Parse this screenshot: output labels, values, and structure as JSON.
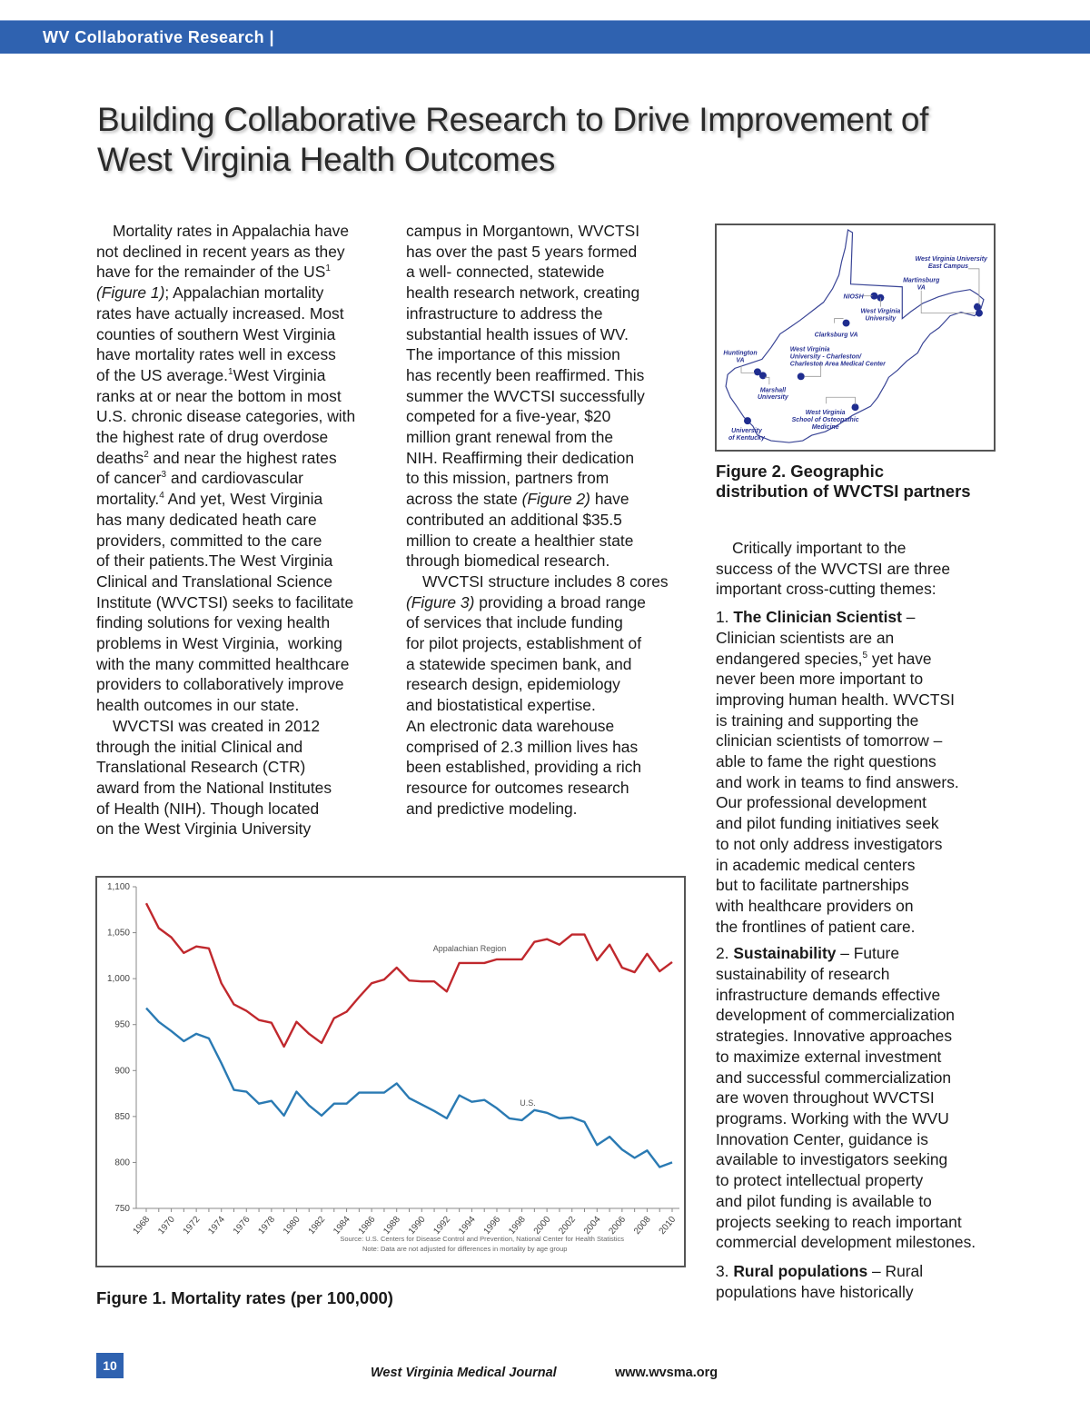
{
  "header": {
    "section": "WV Collaborative Research |"
  },
  "title": {
    "line1": "Building Collaborative Research to Drive Improvement of",
    "line2": "West Virginia Health Outcomes"
  },
  "columns": [
    [
      {
        "indent": true,
        "segs": [
          {
            "t": "Mortality rates in Appalachia have\nnot declined in recent years as they\nhave for the remainder of the US"
          },
          {
            "t": "1",
            "s": true
          },
          {
            "t": "\n"
          },
          {
            "t": "(Figure 1)",
            "i": true
          },
          {
            "t": "; Appalachian mortality\nrates have actually increased. Most\ncounties of southern West Virginia\nhave mortality rates well in excess\nof the US average."
          },
          {
            "t": "1",
            "s": true
          },
          {
            "t": "West Virginia\nranks at or near the bottom in most\nU.S. chronic disease categories, with\nthe highest rate of drug overdose\ndeaths"
          },
          {
            "t": "2",
            "s": true
          },
          {
            "t": " and near the highest rates\nof cancer"
          },
          {
            "t": "3",
            "s": true
          },
          {
            "t": " and cardiovascular\nmortality."
          },
          {
            "t": "4",
            "s": true
          },
          {
            "t": " And yet, West Virginia\nhas many dedicated heath care\nproviders, committed to the care\nof their patients.The West Virginia\nClinical and Translational Science\nInstitute (WVCTSI) seeks to facilitate\nfinding solutions for vexing health\nproblems in West Virginia,  working\nwith the many committed healthcare\nproviders to collaboratively improve\nhealth outcomes in our state."
          }
        ]
      },
      {
        "indent": true,
        "segs": [
          {
            "t": "WVCTSI was created in 2012\nthrough the initial Clinical and\nTranslational Research (CTR)\naward from the National Institutes\nof Health (NIH). Though located\non the West Virginia University"
          }
        ]
      }
    ],
    [
      {
        "indent": false,
        "segs": [
          {
            "t": "campus in Morgantown, WVCTSI\nhas over the past 5 years formed\na well- connected, statewide\nhealth research network, creating\ninfrastructure to address the\nsubstantial health issues of WV.\nThe importance of this mission\nhas recently been reaffirmed. This\nsummer the WVCTSI successfully\ncompeted for a five-year, $20\nmillion grant renewal from the\nNIH. Reaffirming their dedication\nto this mission, partners from\nacross the state "
          },
          {
            "t": "(Figure 2)",
            "i": true
          },
          {
            "t": " have\ncontributed an additional $35.5\nmillion to create a healthier state\nthrough biomedical research."
          }
        ]
      },
      {
        "indent": true,
        "segs": [
          {
            "t": "WVCTSI structure includes 8 cores\n"
          },
          {
            "t": "(Figure 3)",
            "i": true
          },
          {
            "t": " providing a broad range\nof services that include funding\nfor pilot projects, establishment of\na statewide specimen bank, and\nresearch design, epidemiology\nand biostatistical expertise.\nAn electronic data warehouse\ncomprised of 2.3 million lives has\nbeen established, providing a rich\nresource for outcomes research\nand predictive modeling."
          }
        ]
      }
    ],
    [
      {
        "indent": true,
        "segs": [
          {
            "t": "Critically important to the\nsuccess of the WVCTSI are three\nimportant cross-cutting themes:"
          }
        ]
      },
      {
        "indent": false,
        "segs": [
          {
            "t": "1. "
          },
          {
            "t": "The Clinician Scientist",
            "b": true
          },
          {
            "t": " –\nClinician scientists are an\nendangered species,"
          },
          {
            "t": "5",
            "s": true
          },
          {
            "t": " yet have\nnever been more important to\nimproving human health. WVCTSI\nis training and supporting the\nclinician scientists of tomorrow –\nable to fame the right questions\nand work in teams to find answers.\nOur professional development\nand pilot funding initiatives seek\nto not only address investigators\nin academic medical centers\nbut to facilitate partnerships\nwith healthcare providers on\nthe frontlines of patient care."
          }
        ]
      },
      {
        "indent": false,
        "segs": [
          {
            "t": "2. "
          },
          {
            "t": "Sustainability",
            "b": true
          },
          {
            "t": " – Future\nsustainability of research\ninfrastructure demands effective\ndevelopment of commercialization\nstrategies. Innovative approaches\nto maximize external investment\nand successful commercialization\nare woven throughout WVCTSI\nprograms. Working with the WVU\nInnovation Center, guidance is\navailable to investigators seeking\nto protect intellectual property\nand pilot funding is available to\nprojects seeking to reach important\ncommercial development milestones."
          }
        ]
      },
      {
        "indent": false,
        "segs": [
          {
            "t": "3. "
          },
          {
            "t": "Rural populations",
            "b": true
          },
          {
            "t": " – Rural\npopulations have historically"
          }
        ]
      }
    ]
  ],
  "figure1": {
    "caption": "Figure 1. Mortality rates (per 100,000)"
  },
  "figure2": {
    "caption": "Figure 2. Geographic\ndistribution of WVCTSI partners",
    "labels": {
      "wvu_east": "West Virginia University",
      "wvu_east2": "East Campus",
      "martinsburg": "Martinsburg",
      "martinsburg2": "VA",
      "niosh": "NIOSH",
      "wvu": "West Virginia",
      "wvu2": "University",
      "clarksburg": "Clarksburg VA",
      "charleston1": "West Virginia",
      "charleston2": "University - Charleston/",
      "charleston3": "Charleston Area Medical Center",
      "huntington": "Huntington",
      "huntington2": "VA",
      "marshall": "Marshall",
      "marshall2": "University",
      "wvsom1": "West Virginia",
      "wvsom2": "School of Osteopathic",
      "wvsom3": "Medicine",
      "uk1": "University",
      "uk2": "of Kentucky"
    },
    "marker_color": "#1f2d8f"
  },
  "chart_data": {
    "type": "line",
    "title": "",
    "xlabel": "",
    "ylabel": "",
    "x": [
      1968,
      1969,
      1970,
      1971,
      1972,
      1973,
      1974,
      1975,
      1976,
      1977,
      1978,
      1979,
      1980,
      1981,
      1982,
      1983,
      1984,
      1985,
      1986,
      1987,
      1988,
      1989,
      1990,
      1991,
      1992,
      1993,
      1994,
      1995,
      1996,
      1997,
      1998,
      1999,
      2000,
      2001,
      2002,
      2003,
      2004,
      2005,
      2006,
      2007,
      2008,
      2009,
      2010
    ],
    "xticks": [
      "1968",
      "1970",
      "1972",
      "1974",
      "1976",
      "1978",
      "1980",
      "1982",
      "1984",
      "1986",
      "1988",
      "1990",
      "1992",
      "1994",
      "1996",
      "1998",
      "2000",
      "2002",
      "2004",
      "2006",
      "2008",
      "2010"
    ],
    "yticks": [
      "750",
      "800",
      "850",
      "900",
      "950",
      "1,000",
      "1,050",
      "1,100"
    ],
    "ylim": [
      750,
      1100
    ],
    "series": [
      {
        "name": "Appalachian Region",
        "color": "#c0282d",
        "values": [
          1082,
          1055,
          1045,
          1028,
          1035,
          1033,
          995,
          972,
          965,
          955,
          952,
          926,
          953,
          940,
          930,
          957,
          964,
          980,
          995,
          999,
          1012,
          998,
          997,
          997,
          986,
          1017,
          1017,
          1017,
          1021,
          1021,
          1021,
          1040,
          1043,
          1037,
          1048,
          1048,
          1020,
          1037,
          1012,
          1007,
          1027,
          1008,
          1018
        ]
      },
      {
        "name": "U.S.",
        "color": "#2a7ab3",
        "values": [
          968,
          953,
          943,
          932,
          940,
          935,
          908,
          879,
          877,
          864,
          867,
          851,
          877,
          862,
          851,
          864,
          864,
          876,
          876,
          876,
          886,
          870,
          863,
          856,
          848,
          873,
          866,
          868,
          859,
          848,
          846,
          857,
          854,
          848,
          849,
          844,
          819,
          828,
          814,
          805,
          813,
          795,
          800
        ]
      }
    ],
    "source": "Source: U.S. Centers for Disease Control and Prevention, National Center for Health Statistics",
    "note": "Note: Data are not adjusted for differences in mortality by age group"
  },
  "footer": {
    "page": "10",
    "journal": "West Virginia Medical Journal",
    "url": "www.wvsma.org"
  }
}
